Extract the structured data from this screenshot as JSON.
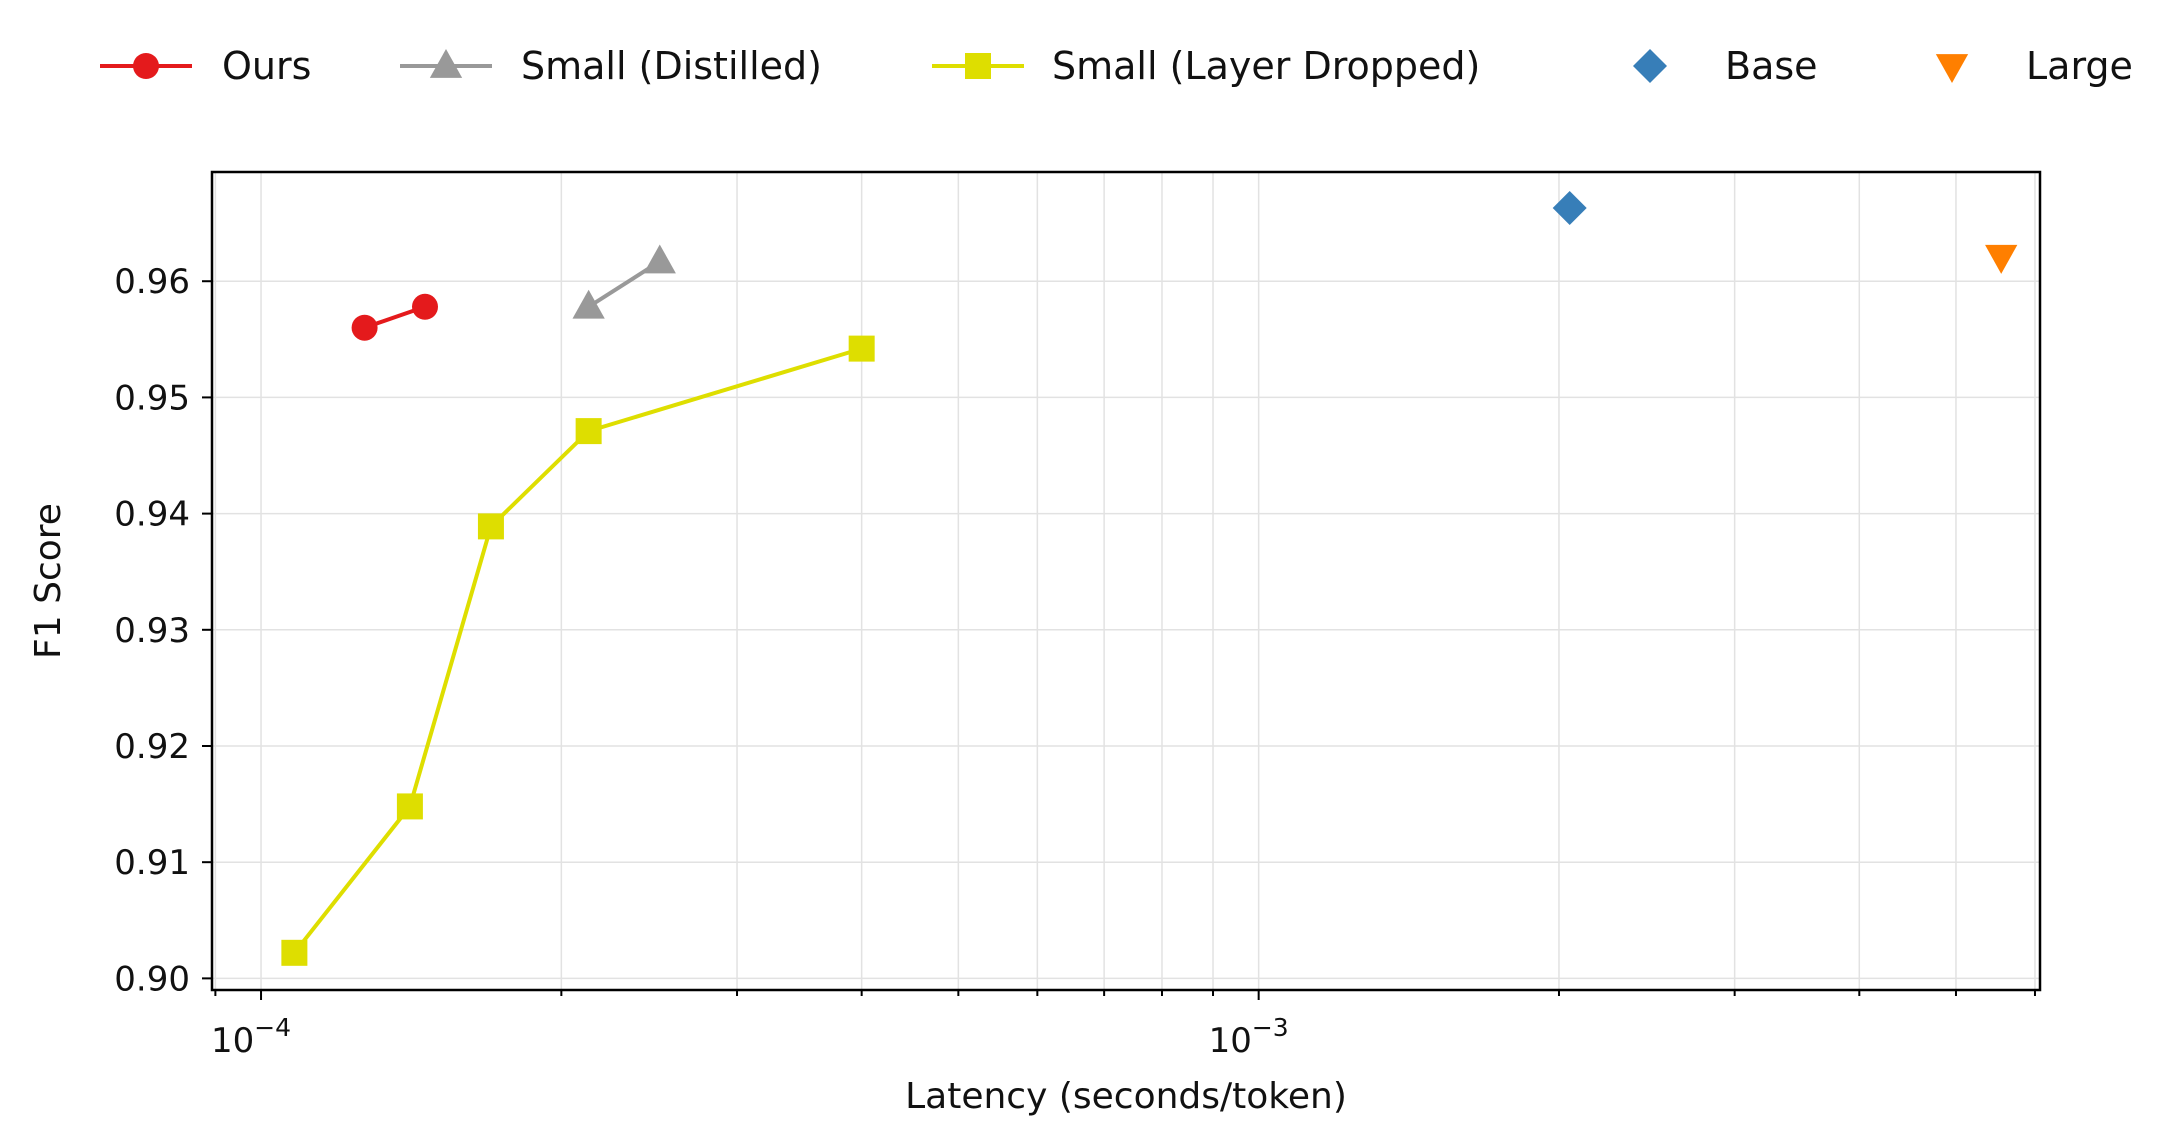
{
  "chart_data": {
    "type": "line",
    "xscale": "log",
    "xlabel": "Latency (seconds/token)",
    "ylabel": "F1 Score",
    "xlim": [
      8.93e-05,
      0.00607
    ],
    "ylim": [
      0.899,
      0.9694
    ],
    "xticks": [
      {
        "value": 0.0001,
        "mantissa": "10",
        "exponent": "−4"
      },
      {
        "value": 0.001,
        "mantissa": "10",
        "exponent": "−3"
      }
    ],
    "yticks": [
      0.9,
      0.91,
      0.92,
      0.93,
      0.94,
      0.95,
      0.96
    ],
    "ytick_labels": [
      "0.90",
      "0.91",
      "0.92",
      "0.93",
      "0.94",
      "0.95",
      "0.96"
    ],
    "grid": true,
    "legend_position": "top",
    "series": [
      {
        "name": "Ours",
        "color": "#e41a1c",
        "marker": "circle",
        "line": true,
        "x": [
          0.000127,
          0.000146
        ],
        "y": [
          0.956,
          0.9578
        ]
      },
      {
        "name": "Small (Distilled)",
        "color": "#999999",
        "marker": "triangle-up",
        "line": true,
        "x": [
          0.000213,
          0.000251
        ],
        "y": [
          0.9578,
          0.9617
        ]
      },
      {
        "name": "Small (Layer Dropped)",
        "color": "#dede00",
        "marker": "square",
        "line": true,
        "x": [
          0.000108,
          0.000141,
          0.00017,
          0.000213,
          0.0004
        ],
        "y": [
          0.9022,
          0.9148,
          0.9389,
          0.9471,
          0.9542
        ]
      },
      {
        "name": "Base",
        "color": "#377eb8",
        "marker": "diamond",
        "line": false,
        "x": [
          0.00205
        ],
        "y": [
          0.9663
        ]
      },
      {
        "name": "Large",
        "color": "#ff7f00",
        "marker": "triangle-down",
        "line": false,
        "x": [
          0.00555
        ],
        "y": [
          0.9621
        ]
      }
    ]
  }
}
